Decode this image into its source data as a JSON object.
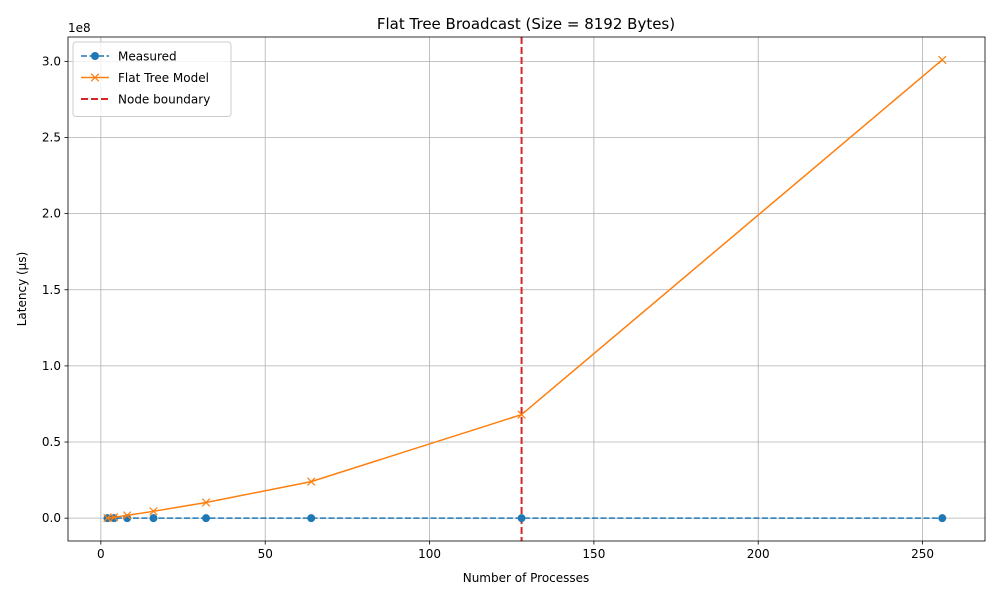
{
  "chart_data": {
    "type": "line",
    "title": "Flat Tree Broadcast (Size = 8192 Bytes)",
    "xlabel": "Number of Processes",
    "ylabel": "Latency (µs)",
    "y_offset_label": "1e8",
    "xlim": [
      -10,
      269
    ],
    "ylim": [
      -15000000,
      316000000
    ],
    "x_ticks": [
      0,
      50,
      100,
      150,
      200,
      250
    ],
    "x_tick_labels": [
      "0",
      "50",
      "100",
      "150",
      "200",
      "250"
    ],
    "y_ticks": [
      0,
      50000000,
      100000000,
      150000000,
      200000000,
      250000000,
      300000000
    ],
    "y_tick_labels": [
      "0.0",
      "0.5",
      "1.0",
      "1.5",
      "2.0",
      "2.5",
      "3.0"
    ],
    "grid": true,
    "legend_position": "top-left",
    "series": [
      {
        "name": "Measured",
        "color": "#1f77b4",
        "linestyle": "dashed",
        "marker": "circle",
        "x": [
          2,
          4,
          8,
          16,
          32,
          64,
          128,
          256
        ],
        "values": [
          0,
          0,
          0,
          0,
          0,
          0,
          0,
          0
        ]
      },
      {
        "name": "Flat Tree Model",
        "color": "#ff7f0e",
        "linestyle": "solid",
        "marker": "x",
        "x": [
          2,
          4,
          8,
          16,
          32,
          64,
          128,
          256
        ],
        "values": [
          100000,
          500000,
          1800000,
          4500000,
          10300000,
          24000000,
          68000000,
          301000000
        ]
      }
    ],
    "vlines": [
      {
        "name": "Node boundary",
        "x": 128,
        "color": "#d62728",
        "linestyle": "dashed"
      }
    ]
  }
}
